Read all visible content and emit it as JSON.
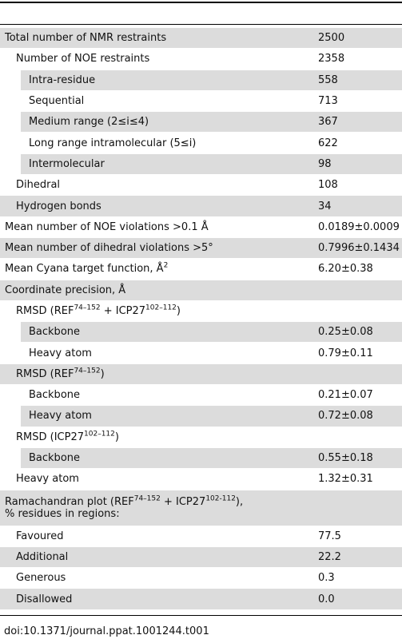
{
  "table": {
    "rows": [
      {
        "label": [
          [
            "Total number of NMR restraints"
          ]
        ],
        "value": "2500"
      },
      {
        "label": [
          [
            "Number of NOE restraints"
          ]
        ],
        "value": "2358"
      },
      {
        "label": [
          [
            "Intra-residue"
          ]
        ],
        "value": "558"
      },
      {
        "label": [
          [
            "Sequential"
          ]
        ],
        "value": "713"
      },
      {
        "label": [
          [
            "Medium range (2≤i≤4)"
          ]
        ],
        "value": "367"
      },
      {
        "label": [
          [
            "Long range intramolecular (5≤i)"
          ]
        ],
        "value": "622"
      },
      {
        "label": [
          [
            "Intermolecular"
          ]
        ],
        "value": "98"
      },
      {
        "label": [
          [
            "Dihedral"
          ]
        ],
        "value": "108"
      },
      {
        "label": [
          [
            "Hydrogen bonds"
          ]
        ],
        "value": "34"
      },
      {
        "label": [
          [
            "Mean number of NOE violations >0.1 Å"
          ]
        ],
        "value": "0.0189±0.0009"
      },
      {
        "label": [
          [
            "Mean number of dihedral violations >5°"
          ]
        ],
        "value": "0.7996±0.1434"
      },
      {
        "label": [
          [
            "Mean Cyana target function, Å",
            {
              "sup": "2"
            }
          ]
        ],
        "value": "6.20±0.38"
      },
      {
        "label": [
          [
            "Coordinate precision, Å"
          ]
        ]
      },
      {
        "label": [
          [
            "RMSD (REF",
            {
              "sup": "74–152"
            },
            " + ICP27",
            {
              "sup": "102–112"
            },
            ")"
          ]
        ]
      },
      {
        "label": [
          [
            "Backbone"
          ]
        ],
        "value": "0.25±0.08"
      },
      {
        "label": [
          [
            "Heavy atom"
          ]
        ],
        "value": "0.79±0.11"
      },
      {
        "label": [
          [
            "RMSD (REF",
            {
              "sup": "74–152"
            },
            ")"
          ]
        ]
      },
      {
        "label": [
          [
            "Backbone"
          ]
        ],
        "value": "0.21±0.07"
      },
      {
        "label": [
          [
            "Heavy atom"
          ]
        ],
        "value": "0.72±0.08"
      },
      {
        "label": [
          [
            "RMSD (ICP27",
            {
              "sup": "102–112"
            },
            ")"
          ]
        ]
      },
      {
        "label": [
          [
            "Backbone"
          ]
        ],
        "value": "0.55±0.18"
      },
      {
        "label": [
          [
            "Heavy atom"
          ]
        ],
        "value": "1.32±0.31"
      },
      {
        "label": [
          [
            "Ramachandran plot (REF",
            {
              "sup": "74–152"
            },
            " + ICP27",
            {
              "sup": "102-112"
            },
            "),"
          ],
          [
            "% residues in regions:"
          ]
        ]
      },
      {
        "label": [
          [
            "Favoured"
          ]
        ],
        "value": "77.5"
      },
      {
        "label": [
          [
            "Additional"
          ]
        ],
        "value": "22.2"
      },
      {
        "label": [
          [
            "Generous"
          ]
        ],
        "value": "0.3"
      },
      {
        "label": [
          [
            "Disallowed"
          ]
        ],
        "value": "0.0"
      }
    ]
  },
  "footer": "doi:10.1371/journal.ppat.1001244.t001"
}
